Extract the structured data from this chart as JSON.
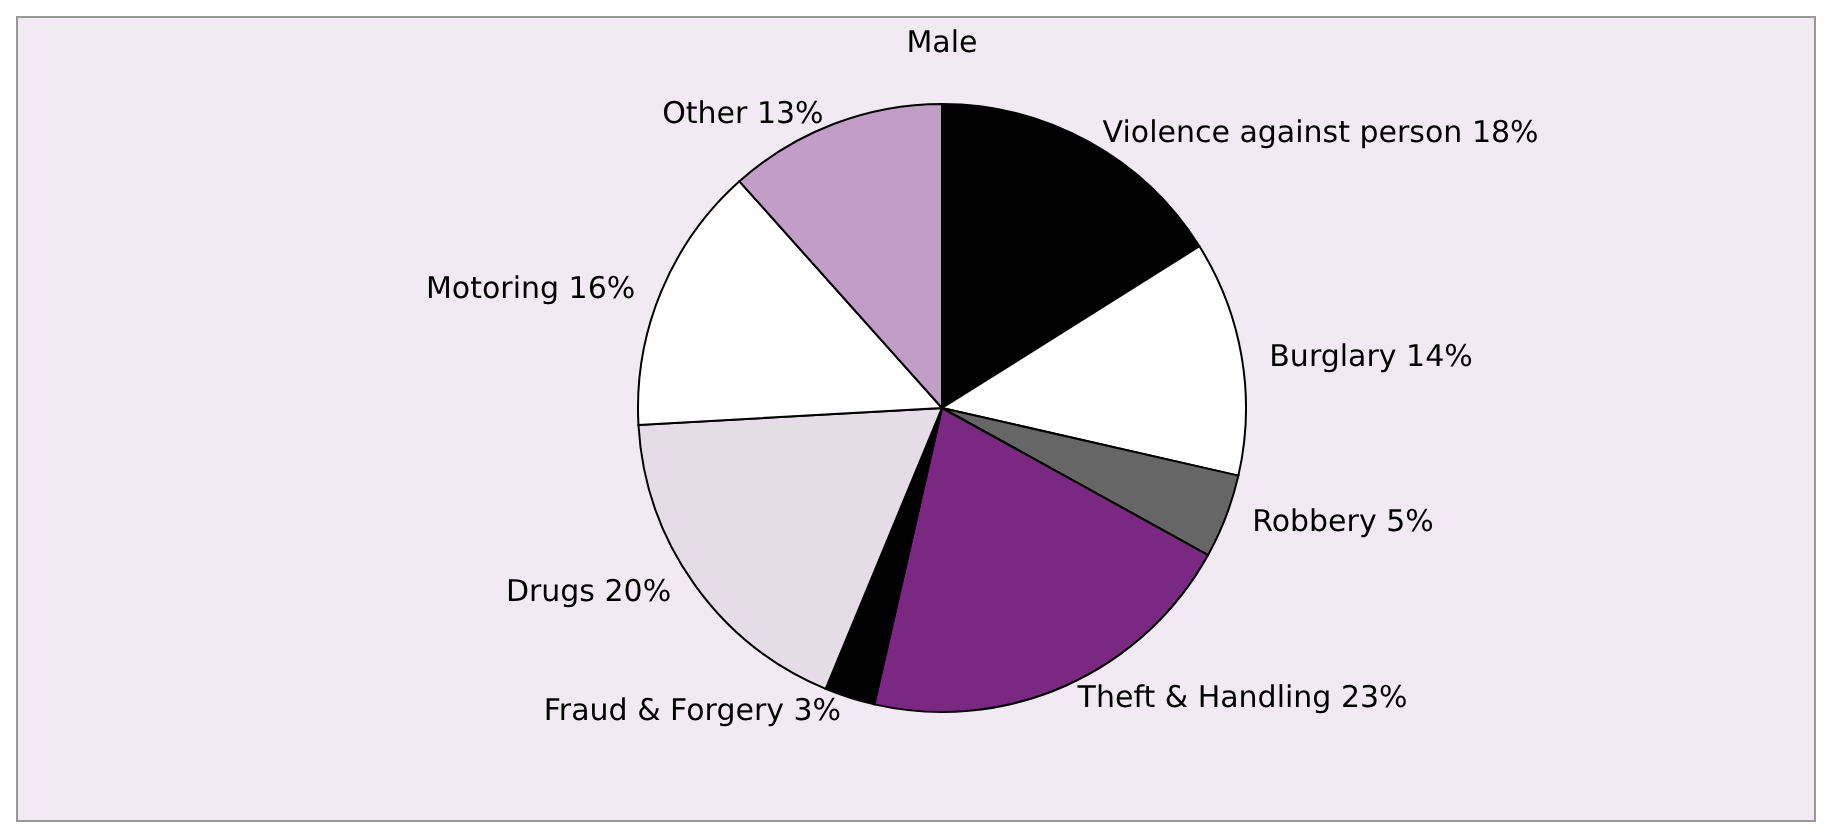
{
  "chart_data": {
    "type": "pie",
    "title": "Male",
    "categories": [
      "Violence against person",
      "Burglary",
      "Robbery",
      "Theft & Handling",
      "Fraud & Forgery",
      "Drugs",
      "Motoring",
      "Other"
    ],
    "values": [
      18,
      14,
      5,
      23,
      3,
      20,
      16,
      13
    ],
    "value_labels": [
      "18%",
      "14%",
      "5%",
      "23%",
      "3%",
      "20%",
      "16%",
      "13%"
    ],
    "colors": [
      "#000000",
      "#ffffff",
      "#666666",
      "#7b2882",
      "#000000",
      "#e6dce8",
      "#ffffff",
      "#c09ec6"
    ]
  }
}
